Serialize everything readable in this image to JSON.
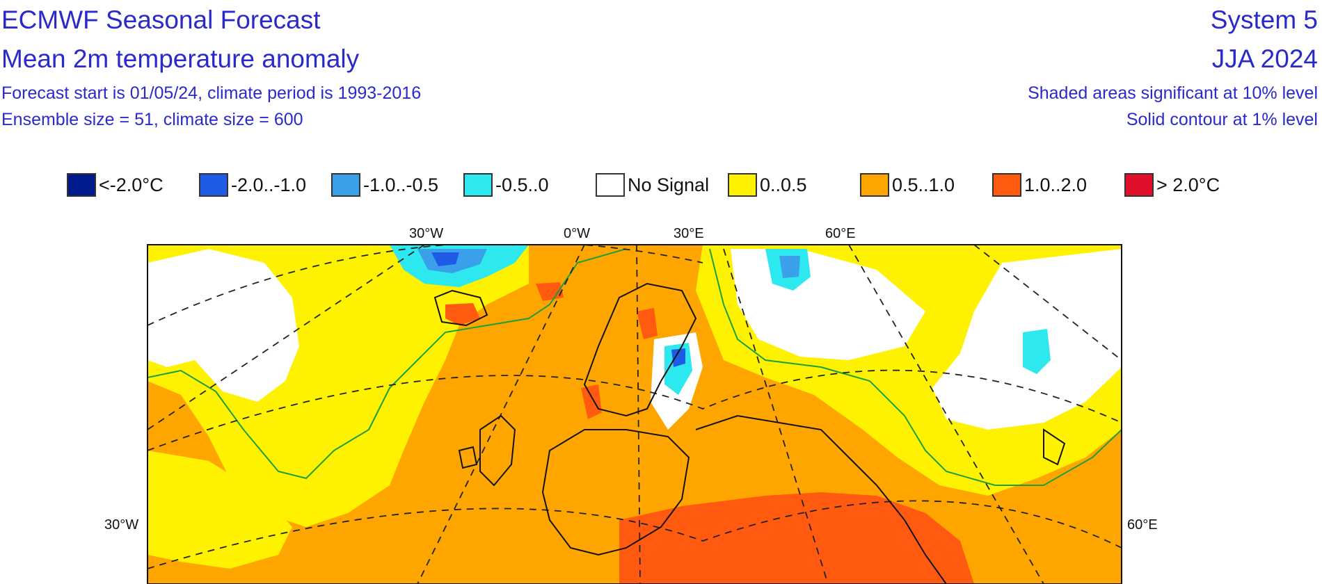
{
  "header": {
    "title": "ECMWF Seasonal Forecast",
    "subtitle": "Mean 2m temperature anomaly",
    "info_line1": "Forecast start is 01/05/24, climate period is 1993-2016",
    "info_line2": "Ensemble size = 51, climate size = 600",
    "system": "System 5",
    "season": "JJA 2024",
    "note_line1": "Shaded areas significant at 10% level",
    "note_line2": "Solid contour at 1% level"
  },
  "legend": [
    {
      "label": "<-2.0°C",
      "color": "#001b8c"
    },
    {
      "label": "-2.0..-1.0",
      "color": "#1f5ce6"
    },
    {
      "label": "-1.0..-0.5",
      "color": "#3aa0ea"
    },
    {
      "label": "-0.5..0",
      "color": "#2ee8ef"
    },
    {
      "label": "No Signal",
      "color": "#ffffff"
    },
    {
      "label": "0..0.5",
      "color": "#fff200"
    },
    {
      "label": "0.5..1.0",
      "color": "#ffa500"
    },
    {
      "label": "1.0..2.0",
      "color": "#ff5a10"
    },
    {
      "label": "> 2.0°C",
      "color": "#e0102a"
    }
  ],
  "map": {
    "top_labels": [
      "30°W",
      "0°W",
      "30°E",
      "60°E"
    ],
    "left_label": "30°W",
    "right_label": "60°E",
    "contour_color": "#1aa03c"
  }
}
